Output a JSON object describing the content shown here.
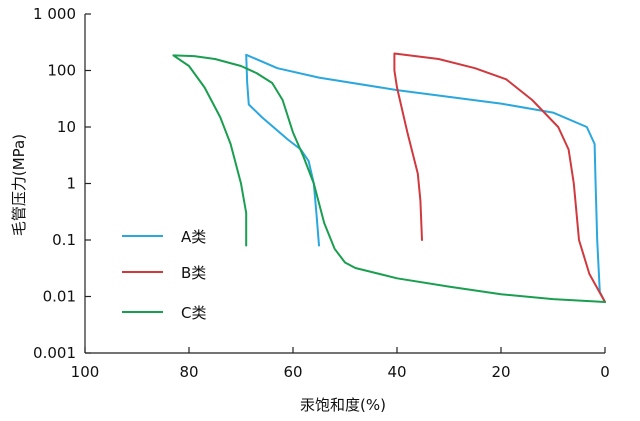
{
  "chart_data": {
    "type": "line",
    "title": "",
    "xlabel": "汞饱和度(%)",
    "ylabel": "毛管压力(MPa)",
    "xlim": [
      100,
      0
    ],
    "x_reversed": true,
    "ylim": [
      0.001,
      1000
    ],
    "y_scale": "log",
    "x_ticks": [
      100,
      80,
      60,
      40,
      20,
      0
    ],
    "x_tick_labels": [
      "100",
      "80",
      "60",
      "40",
      "20",
      "0"
    ],
    "y_ticks": [
      0.001,
      0.01,
      0.1,
      1,
      10,
      100,
      1000
    ],
    "y_tick_labels": [
      "0.001",
      "0.01",
      "0.1",
      "1",
      "10",
      "100",
      "1 000"
    ],
    "grid": false,
    "legend_position": "bottom-left",
    "series": [
      {
        "name": "A类",
        "color": "#2aa7dc",
        "points": [
          [
            0,
            0.008
          ],
          [
            1,
            0.012
          ],
          [
            1.5,
            0.1
          ],
          [
            1.8,
            1
          ],
          [
            2,
            5
          ],
          [
            3.5,
            10
          ],
          [
            10,
            18
          ],
          [
            20,
            26
          ],
          [
            40,
            45
          ],
          [
            55,
            75
          ],
          [
            63,
            110
          ],
          [
            69,
            190
          ],
          [
            68.8,
            60
          ],
          [
            68.5,
            25
          ],
          [
            66,
            15
          ],
          [
            61,
            6
          ],
          [
            58.5,
            4
          ],
          [
            57,
            2.5
          ],
          [
            56,
            1
          ],
          [
            55.5,
            0.3
          ],
          [
            55,
            0.08
          ]
        ]
      },
      {
        "name": "B类",
        "color": "#d0393e",
        "points": [
          [
            0,
            0.008
          ],
          [
            3,
            0.025
          ],
          [
            5,
            0.1
          ],
          [
            6,
            1
          ],
          [
            7,
            4
          ],
          [
            9,
            10
          ],
          [
            14,
            30
          ],
          [
            19,
            70
          ],
          [
            25,
            110
          ],
          [
            32,
            160
          ],
          [
            40.5,
            200
          ],
          [
            40.5,
            100
          ],
          [
            40,
            50
          ],
          [
            38,
            8
          ],
          [
            36,
            1.5
          ],
          [
            35.5,
            0.5
          ],
          [
            35.2,
            0.1
          ]
        ]
      },
      {
        "name": "C类",
        "color": "#1a9e50",
        "points": [
          [
            0,
            0.008
          ],
          [
            10,
            0.009
          ],
          [
            20,
            0.011
          ],
          [
            30,
            0.015
          ],
          [
            40,
            0.021
          ],
          [
            48,
            0.032
          ],
          [
            50,
            0.04
          ],
          [
            52,
            0.07
          ],
          [
            54,
            0.2
          ],
          [
            56,
            1
          ],
          [
            58,
            3
          ],
          [
            60,
            8
          ],
          [
            62,
            30
          ],
          [
            64,
            60
          ],
          [
            67,
            90
          ],
          [
            70,
            120
          ],
          [
            75,
            160
          ],
          [
            79,
            180
          ],
          [
            83,
            185
          ],
          [
            80,
            120
          ],
          [
            77,
            50
          ],
          [
            74,
            15
          ],
          [
            72,
            5
          ],
          [
            70,
            1
          ],
          [
            69,
            0.3
          ],
          [
            69,
            0.08
          ]
        ]
      }
    ]
  }
}
